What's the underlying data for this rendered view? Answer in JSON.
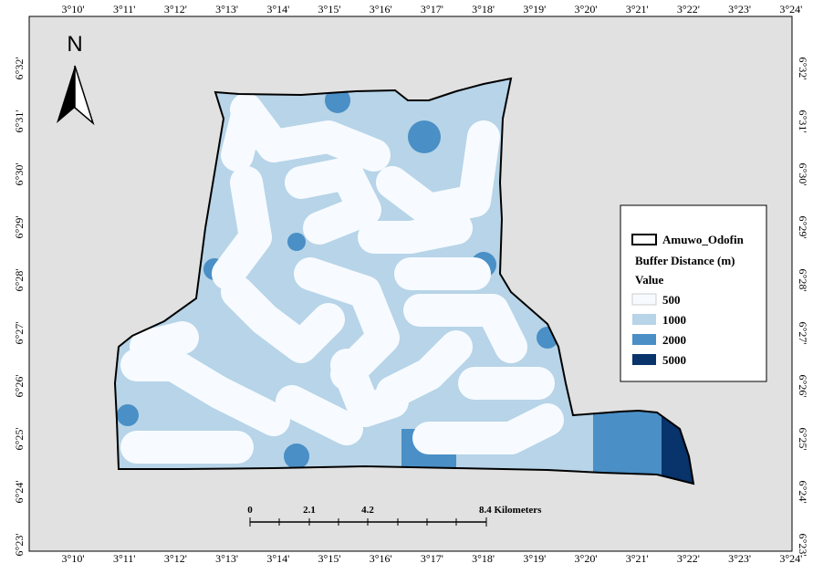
{
  "map": {
    "north_label": "N",
    "longitude_labels": [
      "3°10'",
      "3°11'",
      "3°12'",
      "3°13'",
      "3°14'",
      "3°15'",
      "3°16'",
      "3°17'",
      "3°18'",
      "3°19'",
      "3°20'",
      "3°21'",
      "3°22'",
      "3°23'",
      "3°24'"
    ],
    "latitude_labels": [
      "6°32'",
      "6°31'",
      "6°30'",
      "6°29'",
      "6°28'",
      "6°27'",
      "6°26'",
      "6°25'",
      "6°24'",
      "6°23'"
    ],
    "legend": {
      "boundary_label": "Amuwo_Odofin",
      "title": "Buffer Distance (m)",
      "subtitle": "Value",
      "classes": [
        {
          "label": "500",
          "color": "#f7fbff"
        },
        {
          "label": "1000",
          "color": "#b7d4e8"
        },
        {
          "label": "2000",
          "color": "#4a8fc6"
        },
        {
          "label": "5000",
          "color": "#08336b"
        }
      ]
    },
    "scale_bar": {
      "labels": [
        "0",
        "2.1",
        "4.2",
        "8.4 Kilometers"
      ]
    }
  }
}
